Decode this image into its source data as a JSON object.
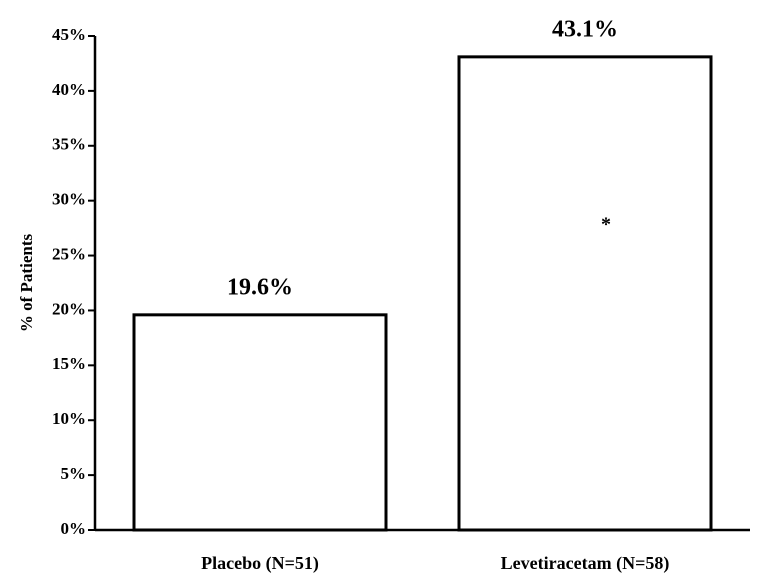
{
  "chart_data": {
    "type": "bar",
    "y_label": "% of Patients",
    "categories": [
      "Placebo (N=51)",
      "Levetiracetam (N=58)"
    ],
    "values": [
      19.6,
      43.1
    ],
    "value_labels": [
      "19.6%",
      "43.1%"
    ],
    "annotation": "*",
    "color": "#ffffff",
    "edge_color": "#000000",
    "ylim": [
      0,
      45
    ],
    "yticks": [
      {
        "value": 0,
        "label": "0%"
      },
      {
        "value": 5,
        "label": "5%"
      },
      {
        "value": 10,
        "label": "10%"
      },
      {
        "value": 15,
        "label": "15%"
      },
      {
        "value": 20,
        "label": "20%"
      },
      {
        "value": 25,
        "label": "25%"
      },
      {
        "value": 30,
        "label": "30%"
      },
      {
        "value": 35,
        "label": "35%"
      },
      {
        "value": 40,
        "label": "40%"
      },
      {
        "value": 45,
        "label": "45%"
      }
    ],
    "grid": false
  }
}
